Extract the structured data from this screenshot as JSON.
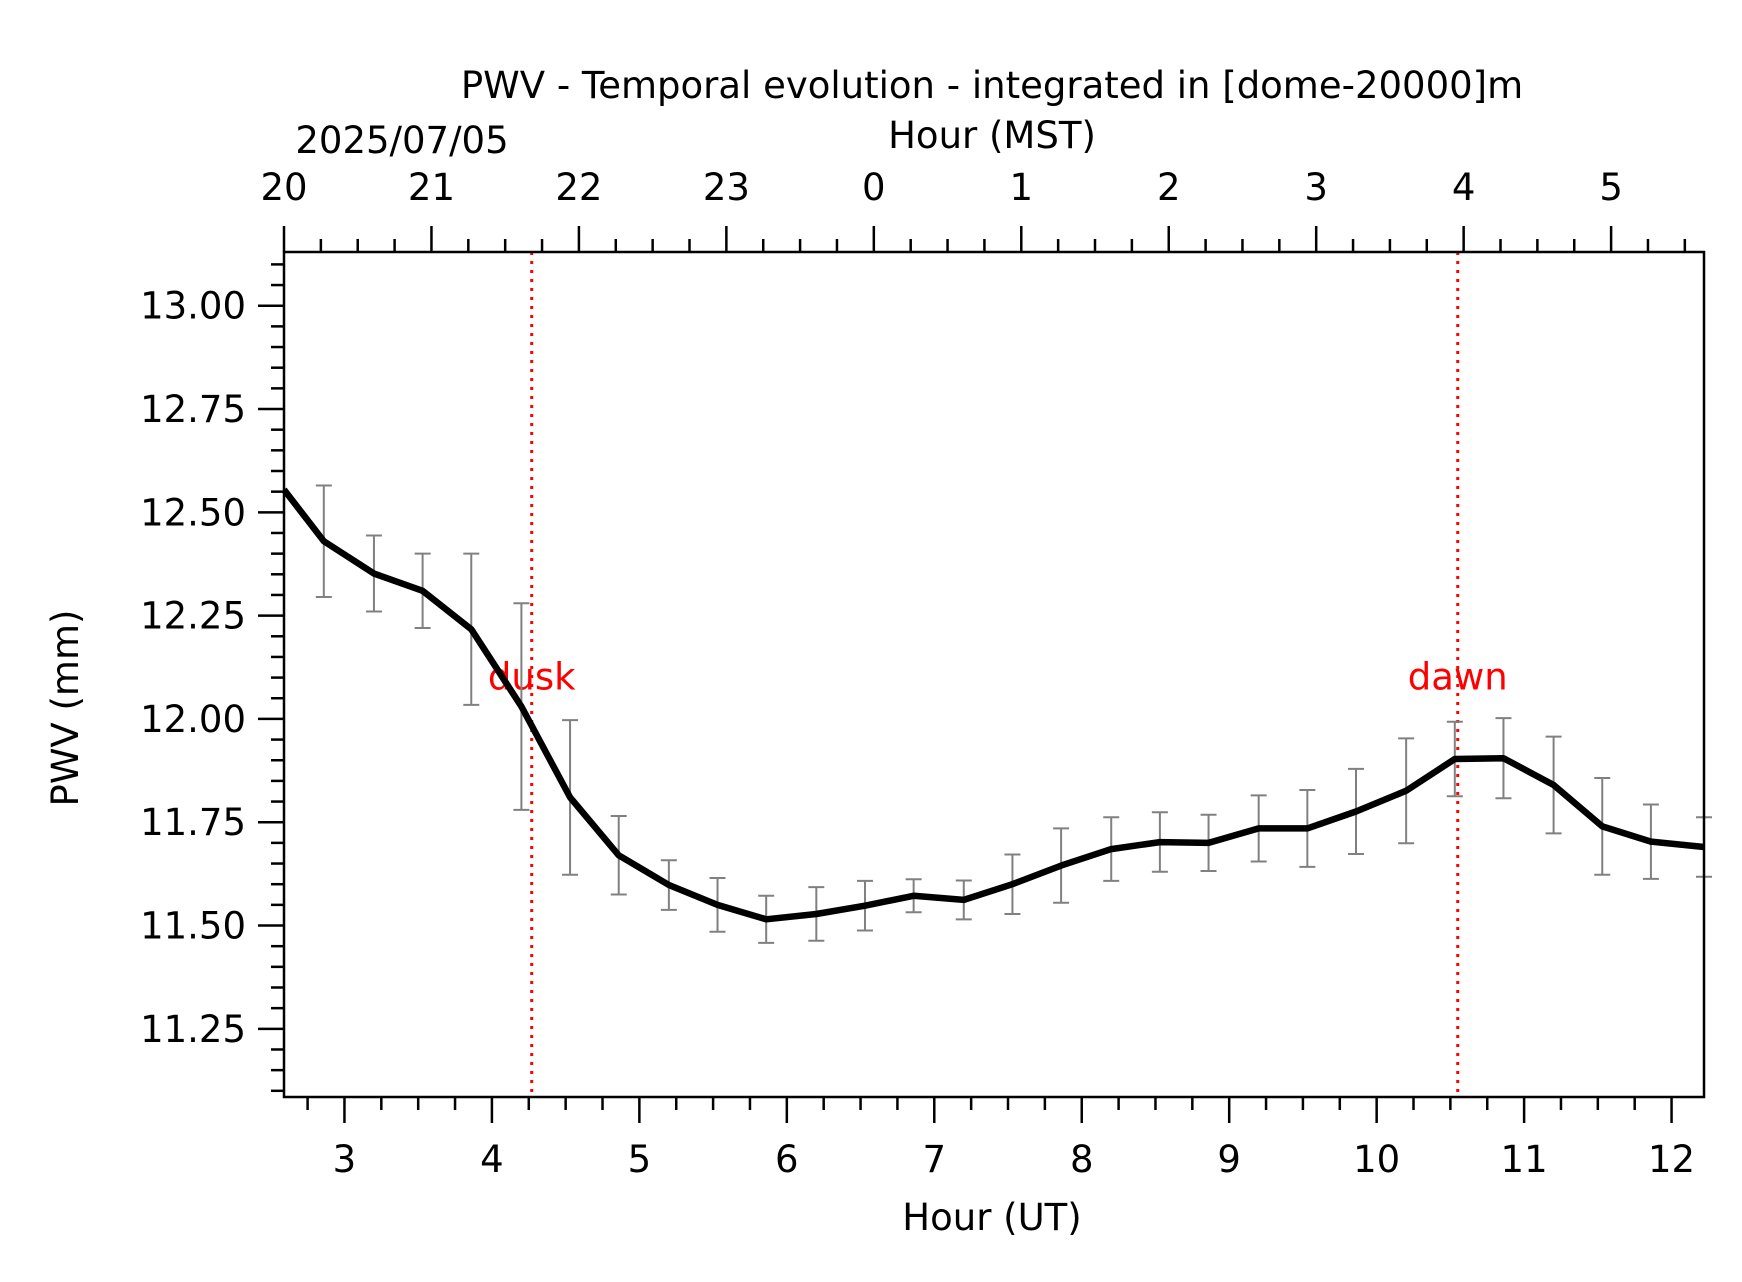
{
  "chart_data": {
    "type": "line",
    "title": "PWV - Temporal evolution - integrated in [dome-20000]m",
    "date_label": "2025/07/05",
    "xlabel": "Hour (UT)",
    "x2label": "Hour (MST)",
    "ylabel": "PWV (mm)",
    "xlim": [
      2.59,
      12.22
    ],
    "ylim": [
      11.085,
      13.13
    ],
    "x_ticks": [
      3,
      4,
      5,
      6,
      7,
      8,
      9,
      10,
      11,
      12
    ],
    "x_tick_labels": [
      "3",
      "4",
      "5",
      "6",
      "7",
      "8",
      "9",
      "10",
      "11",
      "12"
    ],
    "x2_ticks_ut": [
      2.59,
      3.59,
      4.59,
      5.59,
      6.59,
      7.59,
      8.59,
      9.59,
      10.59,
      11.59
    ],
    "x2_tick_labels": [
      "20",
      "21",
      "22",
      "23",
      "0",
      "1",
      "2",
      "3",
      "4",
      "5"
    ],
    "y_ticks": [
      11.25,
      11.5,
      11.75,
      12.0,
      12.25,
      12.5,
      12.75,
      13.0
    ],
    "y_tick_labels": [
      "11.25",
      "11.50",
      "11.75",
      "12.00",
      "12.25",
      "12.50",
      "12.75",
      "13.00"
    ],
    "grid": false,
    "series": [
      {
        "color": "#000000",
        "x": [
          2.59,
          2.86,
          3.2,
          3.53,
          3.86,
          4.2,
          4.53,
          4.86,
          5.2,
          5.53,
          5.86,
          6.2,
          6.53,
          6.86,
          7.2,
          7.53,
          7.86,
          8.2,
          8.53,
          8.86,
          9.2,
          9.53,
          9.86,
          10.2,
          10.53,
          10.86,
          11.2,
          11.53,
          11.86,
          12.22
        ],
        "y": [
          12.555,
          12.43,
          12.352,
          12.31,
          12.217,
          12.03,
          11.81,
          11.67,
          11.598,
          11.55,
          11.515,
          11.528,
          11.548,
          11.572,
          11.562,
          11.6,
          11.645,
          11.685,
          11.702,
          11.7,
          11.735,
          11.735,
          11.776,
          11.826,
          11.903,
          11.905,
          11.84,
          11.74,
          11.703,
          11.69
        ],
        "err": [
          null,
          0.135,
          0.092,
          0.09,
          0.183,
          0.25,
          0.187,
          0.095,
          0.06,
          0.065,
          0.057,
          0.065,
          0.06,
          0.04,
          0.047,
          0.072,
          0.09,
          0.077,
          0.072,
          0.068,
          0.08,
          0.093,
          0.103,
          0.127,
          0.09,
          0.097,
          0.117,
          0.117,
          0.09,
          0.072
        ],
        "err_color": "#808080"
      }
    ],
    "annotations": [
      {
        "text": "dusk",
        "x": 4.27,
        "y": 12.1,
        "line_x": 4.27,
        "color": "#ff0000"
      },
      {
        "text": "dawn",
        "x": 10.55,
        "y": 12.1,
        "line_x": 10.55,
        "color": "#ff0000"
      }
    ]
  }
}
